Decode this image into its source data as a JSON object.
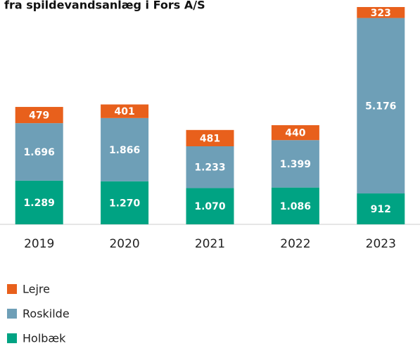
{
  "chart_data": {
    "type": "stacked_bar",
    "title": "fra spildevandsanlæg i Fors A/S",
    "categories": [
      "2019",
      "2020",
      "2021",
      "2022",
      "2023"
    ],
    "series": [
      {
        "name": "Holbæk",
        "color": "#00a383",
        "values": [
          1289,
          1270,
          1070,
          1086,
          912
        ],
        "value_labels": [
          "1.289",
          "1.270",
          "1.070",
          "1.086",
          "912"
        ]
      },
      {
        "name": "Roskilde",
        "color": "#6e9fb7",
        "values": [
          1696,
          1866,
          1233,
          1399,
          5176
        ],
        "value_labels": [
          "1.696",
          "1.866",
          "1.233",
          "1.399",
          "5.176"
        ]
      },
      {
        "name": "Lejre",
        "color": "#e8601c",
        "values": [
          479,
          401,
          481,
          440,
          323
        ],
        "value_labels": [
          "479",
          "401",
          "481",
          "440",
          "323"
        ]
      }
    ]
  }
}
